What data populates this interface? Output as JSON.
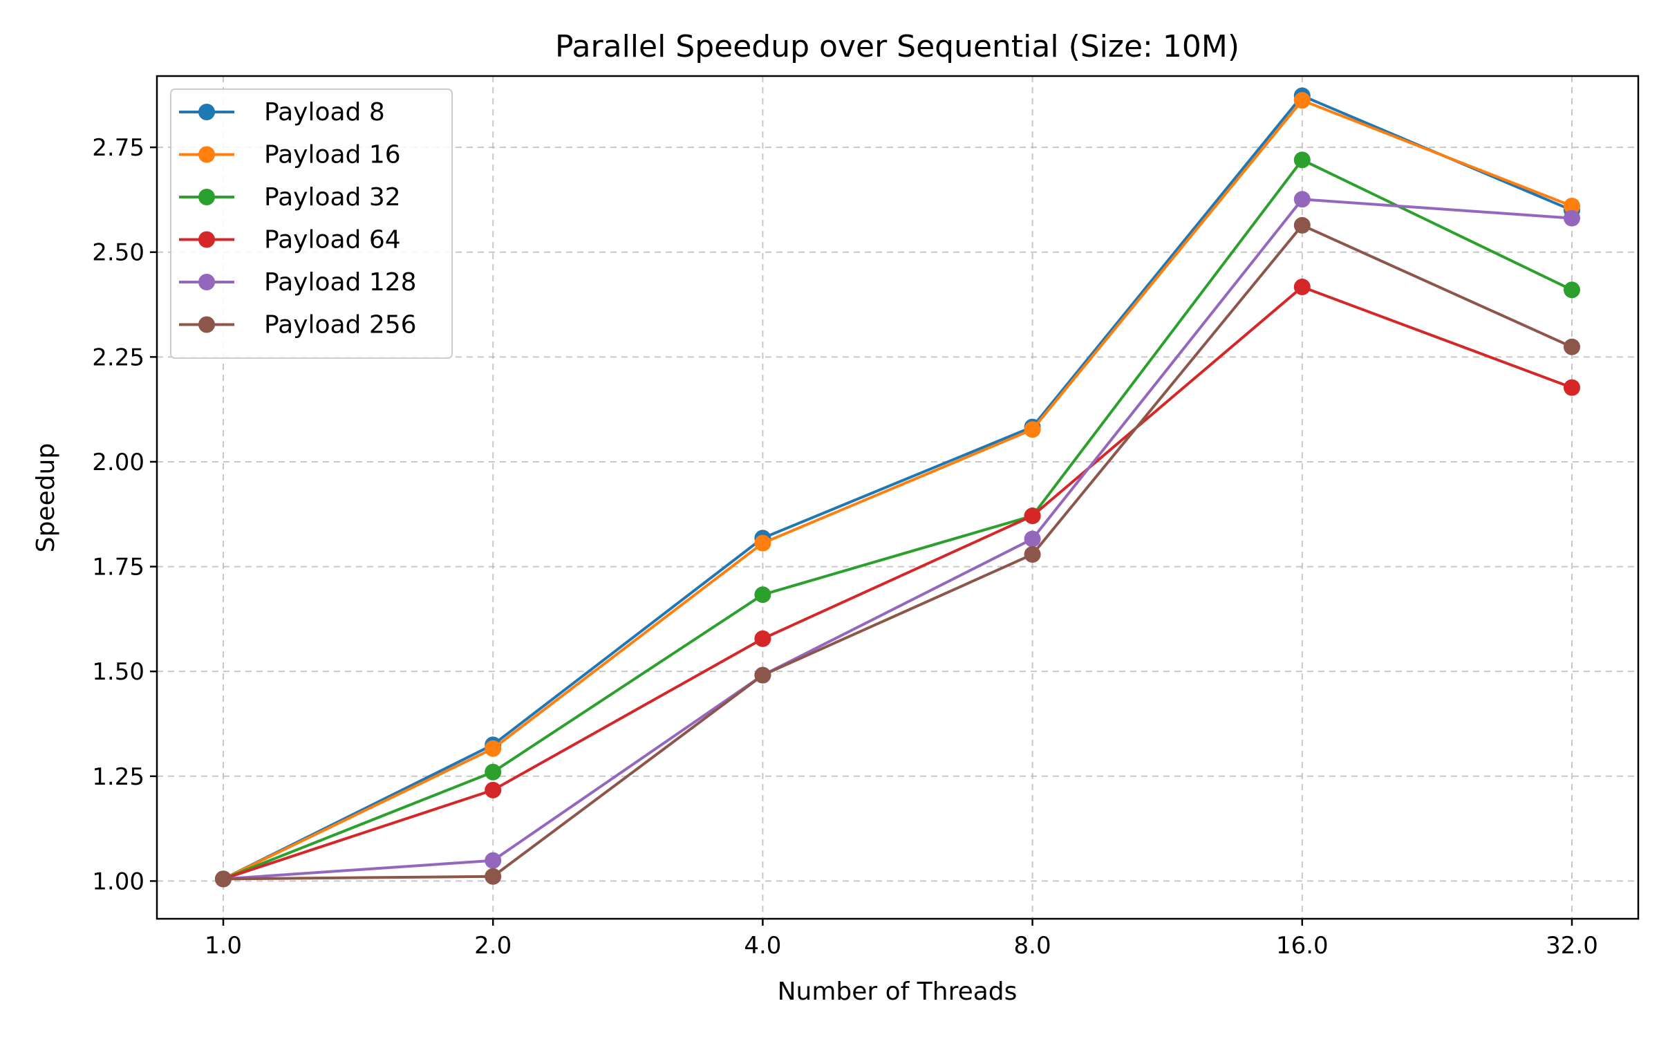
{
  "chart_data": {
    "type": "line",
    "title": "Parallel Speedup over Sequential (Size: 10M)",
    "xlabel": "Number of Threads",
    "ylabel": "Speedup",
    "x": [
      1,
      2,
      4,
      8,
      16,
      32
    ],
    "x_tick_labels": [
      "1.0",
      "2.0",
      "4.0",
      "8.0",
      "16.0",
      "32.0"
    ],
    "x_scale": "log2",
    "ylim": [
      0.91,
      2.92
    ],
    "y_ticks": [
      1.0,
      1.25,
      1.5,
      1.75,
      2.0,
      2.25,
      2.5,
      2.75
    ],
    "y_tick_labels": [
      "1.00",
      "1.25",
      "1.50",
      "1.75",
      "2.00",
      "2.25",
      "2.50",
      "2.75"
    ],
    "grid": true,
    "legend_position": "top-left",
    "series": [
      {
        "name": "Payload 8",
        "color": "#1f77b4",
        "values": [
          1.005,
          1.325,
          1.818,
          2.083,
          2.873,
          2.6
        ]
      },
      {
        "name": "Payload 16",
        "color": "#ff7f0e",
        "values": [
          1.005,
          1.316,
          1.806,
          2.077,
          2.862,
          2.61
        ]
      },
      {
        "name": "Payload 32",
        "color": "#2ca02c",
        "values": [
          1.005,
          1.26,
          1.683,
          1.871,
          2.72,
          2.41
        ]
      },
      {
        "name": "Payload 64",
        "color": "#d62728",
        "values": [
          1.005,
          1.217,
          1.578,
          1.871,
          2.417,
          2.177
        ]
      },
      {
        "name": "Payload 128",
        "color": "#9467bd",
        "values": [
          1.005,
          1.049,
          1.491,
          1.816,
          2.626,
          2.581
        ]
      },
      {
        "name": "Payload 256",
        "color": "#8c564b",
        "values": [
          1.005,
          1.011,
          1.491,
          1.779,
          2.564,
          2.274
        ]
      }
    ]
  }
}
